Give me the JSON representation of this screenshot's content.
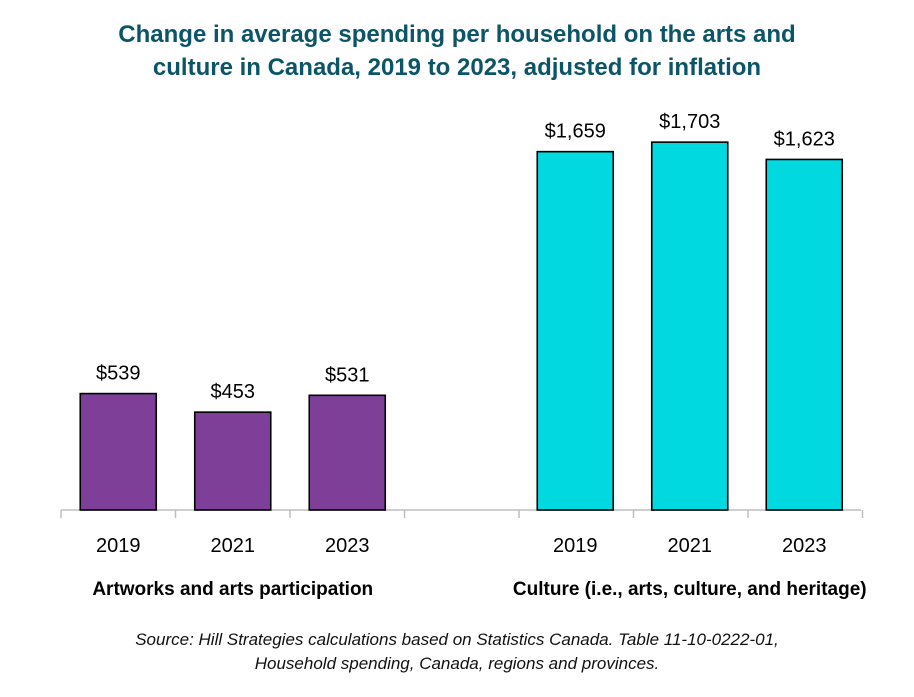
{
  "chart_data": {
    "type": "bar",
    "title_lines": [
      "Change in average spending per household on the arts and",
      "culture in Canada, 2019 to 2023, adjusted for inflation"
    ],
    "groups": [
      {
        "name": "Artworks and arts participation",
        "color": "#7e3f98",
        "categories": [
          "2019",
          "2021",
          "2023"
        ],
        "values": [
          539,
          453,
          531
        ],
        "value_labels": [
          "$539",
          "$453",
          "$531"
        ]
      },
      {
        "name": "Culture (i.e., arts, culture, and heritage)",
        "color": "#00d9e0",
        "categories": [
          "2019",
          "2021",
          "2023"
        ],
        "values": [
          1659,
          1703,
          1623
        ],
        "value_labels": [
          "$1,659",
          "$1,703",
          "$1,623"
        ]
      }
    ],
    "ylim": [
      0,
      1900
    ],
    "grid": false,
    "legend": "none",
    "source_lines": [
      "Source: Hill Strategies calculations based on Statistics Canada. Table 11-10-0222-01,",
      "Household spending, Canada, regions and provinces."
    ]
  }
}
